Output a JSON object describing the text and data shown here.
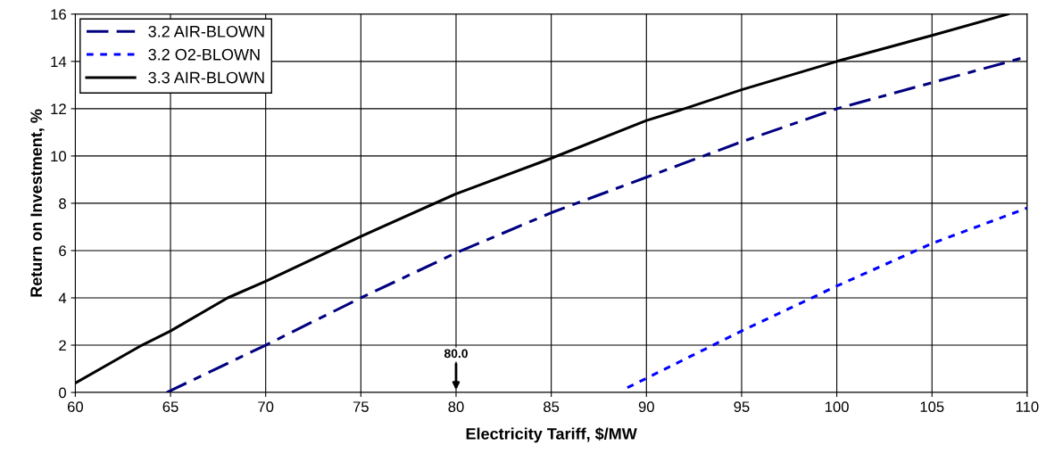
{
  "chart_data": {
    "type": "line",
    "xlabel": "Electricity Tariff, $/MW",
    "ylabel": "Return on Investment, %",
    "xlim": [
      60,
      110
    ],
    "xticks": [
      60,
      65,
      70,
      75,
      80,
      85,
      90,
      95,
      100,
      105,
      110
    ],
    "ylim": [
      0,
      16
    ],
    "yticks": [
      0,
      2,
      4,
      6,
      8,
      10,
      12,
      14,
      16
    ],
    "grid": true,
    "legend": "top left",
    "marker": "none",
    "series": [
      {
        "name": "3.2 AIR-BLOWN",
        "color": "#000080",
        "line_style": "dashed",
        "x": [
          64.8,
          70,
          75,
          80,
          85,
          90,
          93,
          95,
          100,
          105,
          110
        ],
        "values": [
          0,
          2,
          4,
          5.9,
          7.6,
          9.1,
          10,
          10.6,
          12,
          13.1,
          14.2
        ]
      },
      {
        "name": "3.2 O2-BLOWN",
        "color": "#0000ff",
        "line_style": "dotted",
        "x": [
          89,
          90,
          95,
          100,
          105,
          110
        ],
        "values": [
          0.2,
          0.6,
          2.6,
          4.5,
          6.3,
          7.8
        ]
      },
      {
        "name": "3.3 AIR-BLOWN",
        "color": "#000000",
        "line_style": "solid",
        "x": [
          60,
          63.5,
          65,
          68,
          70,
          75,
          80,
          85,
          90,
          92,
          95,
          100,
          105,
          109
        ],
        "values": [
          0.4,
          2,
          2.6,
          4,
          4.7,
          6.6,
          8.4,
          9.9,
          11.5,
          12,
          12.8,
          14,
          15.1,
          16
        ]
      }
    ],
    "annotations": [
      "80.0"
    ]
  }
}
